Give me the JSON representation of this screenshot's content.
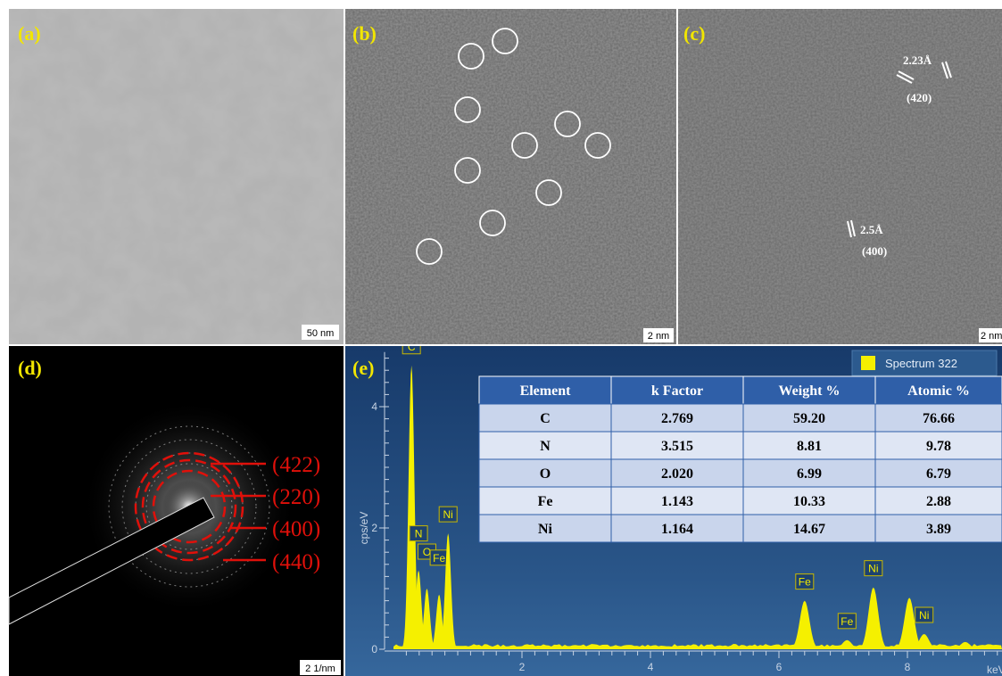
{
  "panels": [
    {
      "label": "(a)",
      "scale_bar": "50 nm"
    },
    {
      "label": "(b)",
      "scale_bar": "2 nm"
    },
    {
      "label": "(c)",
      "scale_bar": "2 nm",
      "annotations": [
        "2.23Å",
        "(420)",
        "2.5Å",
        "(400)"
      ]
    },
    {
      "label": "(d)",
      "scale_bar": "2 1/nm",
      "annotations": [
        "(422)",
        "(220)",
        "(400)",
        "(440)"
      ]
    },
    {
      "label": "(e)"
    }
  ],
  "spectrum": {
    "legend": "Spectrum 322",
    "x_label": "keV",
    "y_label": "cps/eV",
    "xlim": [
      0,
      9.5
    ],
    "ylim": [
      0,
      4.9
    ],
    "xticks": [
      2,
      4,
      6,
      8
    ],
    "yticks": [
      0,
      2,
      4
    ],
    "peaks": [
      {
        "label": "C",
        "x": 0.28,
        "y": 4.68
      },
      {
        "label": "N",
        "x": 0.39,
        "y": 1.3
      },
      {
        "label": "O",
        "x": 0.52,
        "y": 1.0
      },
      {
        "label": "Fe",
        "x": 0.71,
        "y": 0.9
      },
      {
        "label": "Ni",
        "x": 0.85,
        "y": 1.91
      },
      {
        "label": "Fe",
        "x": 6.4,
        "y": 0.8
      },
      {
        "label": "Fe",
        "x": 7.06,
        "y": 0.15
      },
      {
        "label": "Ni",
        "x": 7.47,
        "y": 1.02
      },
      {
        "label": null,
        "x": 8.03,
        "y": 0.85
      },
      {
        "label": "Ni",
        "x": 8.26,
        "y": 0.25
      },
      {
        "label": null,
        "x": 8.9,
        "y": 0.12
      }
    ]
  },
  "table": {
    "header": [
      "Element",
      "k Factor",
      "Weight %",
      "Atomic %"
    ],
    "rows": [
      [
        "C",
        "2.769",
        "59.20",
        "76.66"
      ],
      [
        "N",
        "3.515",
        "8.81",
        "9.78"
      ],
      [
        "O",
        "2.020",
        "6.99",
        "6.79"
      ],
      [
        "Fe",
        "1.143",
        "10.33",
        "2.88"
      ],
      [
        "Ni",
        "1.164",
        "14.67",
        "3.89"
      ]
    ]
  }
}
